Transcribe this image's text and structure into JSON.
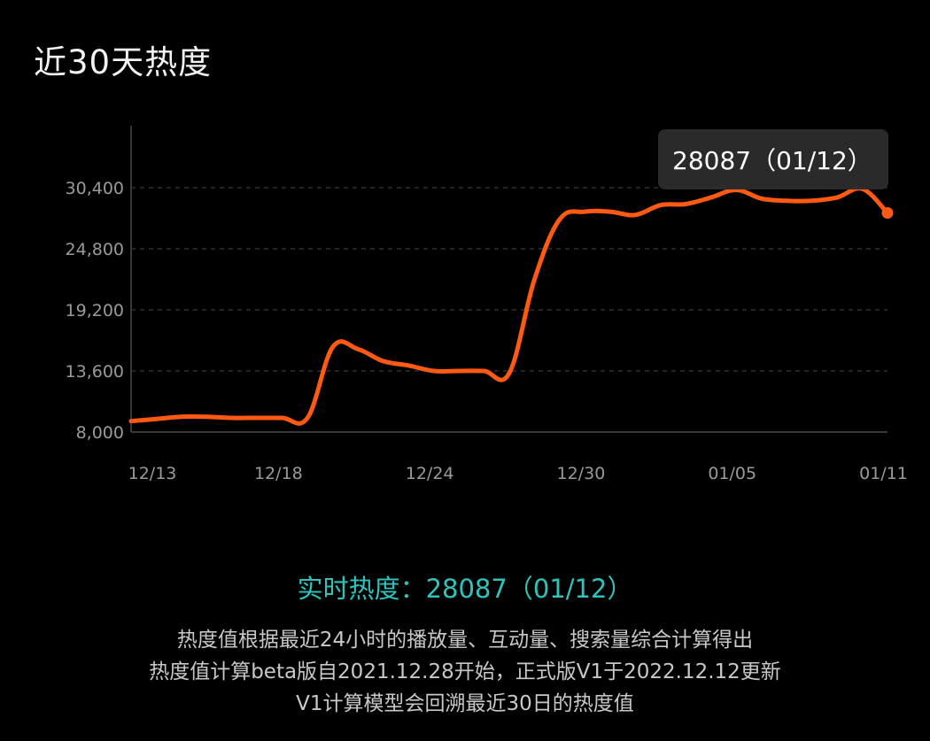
{
  "title": "近30天热度",
  "chart_data": {
    "type": "line",
    "title": "近30天热度",
    "y_ticks": [
      8000,
      13600,
      19200,
      24800,
      30400
    ],
    "y_tick_labels": [
      "8,000",
      "13,600",
      "19,200",
      "24,800",
      "30,400"
    ],
    "ylim": [
      8000,
      30400
    ],
    "x_tick_labels": [
      "12/13",
      "12/18",
      "12/24",
      "12/30",
      "01/05",
      "01/11"
    ],
    "grid": true,
    "line_color": "#ff5a14",
    "x": [
      "12/13",
      "12/14",
      "12/15",
      "12/16",
      "12/17",
      "12/18",
      "12/19",
      "12/20",
      "12/21",
      "12/22",
      "12/23",
      "12/24",
      "12/25",
      "12/26",
      "12/27",
      "12/28",
      "12/29",
      "12/30",
      "12/31",
      "01/01",
      "01/02",
      "01/03",
      "01/04",
      "01/05",
      "01/06",
      "01/07",
      "01/08",
      "01/09",
      "01/10",
      "01/11",
      "01/12"
    ],
    "series": [
      {
        "values": [
          9000,
          9200,
          9400,
          9400,
          9300,
          9300,
          9300,
          9300,
          15800,
          15600,
          14500,
          14100,
          13600,
          13600,
          13600,
          13400,
          22000,
          27500,
          28200,
          28200,
          27900,
          28800,
          28900,
          29500,
          30200,
          29400,
          29200,
          29200,
          29500,
          30300,
          28087
        ]
      }
    ],
    "tooltip": "28087（01/12）"
  },
  "realtime": "实时热度：28087（01/12）",
  "notes": [
    "热度值根据最近24小时的播放量、互动量、搜索量综合计算得出",
    "热度值计算beta版自2021.12.28开始，正式版V1于2022.12.12更新",
    "V1计算模型会回溯最近30日的热度值"
  ]
}
